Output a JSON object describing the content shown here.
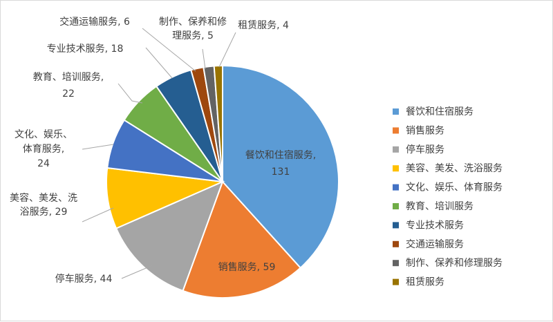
{
  "chart_data": {
    "type": "pie",
    "title": "",
    "legend_position": "right",
    "slices": [
      {
        "name": "餐饮和住宿服务",
        "value": 131,
        "color": "#5b9bd5",
        "label": [
          "餐饮和住宿服务,",
          "131"
        ]
      },
      {
        "name": "销售服务",
        "value": 59,
        "color": "#ed7d31",
        "label": [
          "销售服务, 59"
        ]
      },
      {
        "name": "停车服务",
        "value": 44,
        "color": "#a5a5a5",
        "label": [
          "停车服务, 44"
        ]
      },
      {
        "name": "美容、美发、洗浴服务",
        "value": 29,
        "color": "#ffc000",
        "label": [
          "美容、美发、洗",
          "浴服务, 29"
        ]
      },
      {
        "name": "文化、娱乐、体育服务",
        "value": 24,
        "color": "#4472c4",
        "label": [
          "文化、娱乐、",
          "体育服务,",
          "24"
        ]
      },
      {
        "name": "教育、培训服务",
        "value": 22,
        "color": "#70ad47",
        "label": [
          "教育、培训服务,",
          "22"
        ]
      },
      {
        "name": "专业技术服务",
        "value": 18,
        "color": "#255e91",
        "label": [
          "专业技术服务, 18"
        ]
      },
      {
        "name": "交通运输服务",
        "value": 6,
        "color": "#9e480e",
        "label": [
          "交通运输服务, 6"
        ]
      },
      {
        "name": "制作、保养和修理服务",
        "value": 5,
        "color": "#636363",
        "label": [
          "制作、保养和修",
          "理服务, 5"
        ]
      },
      {
        "name": "租赁服务",
        "value": 4,
        "color": "#997300",
        "label": [
          "租赁服务, 4"
        ]
      }
    ]
  }
}
